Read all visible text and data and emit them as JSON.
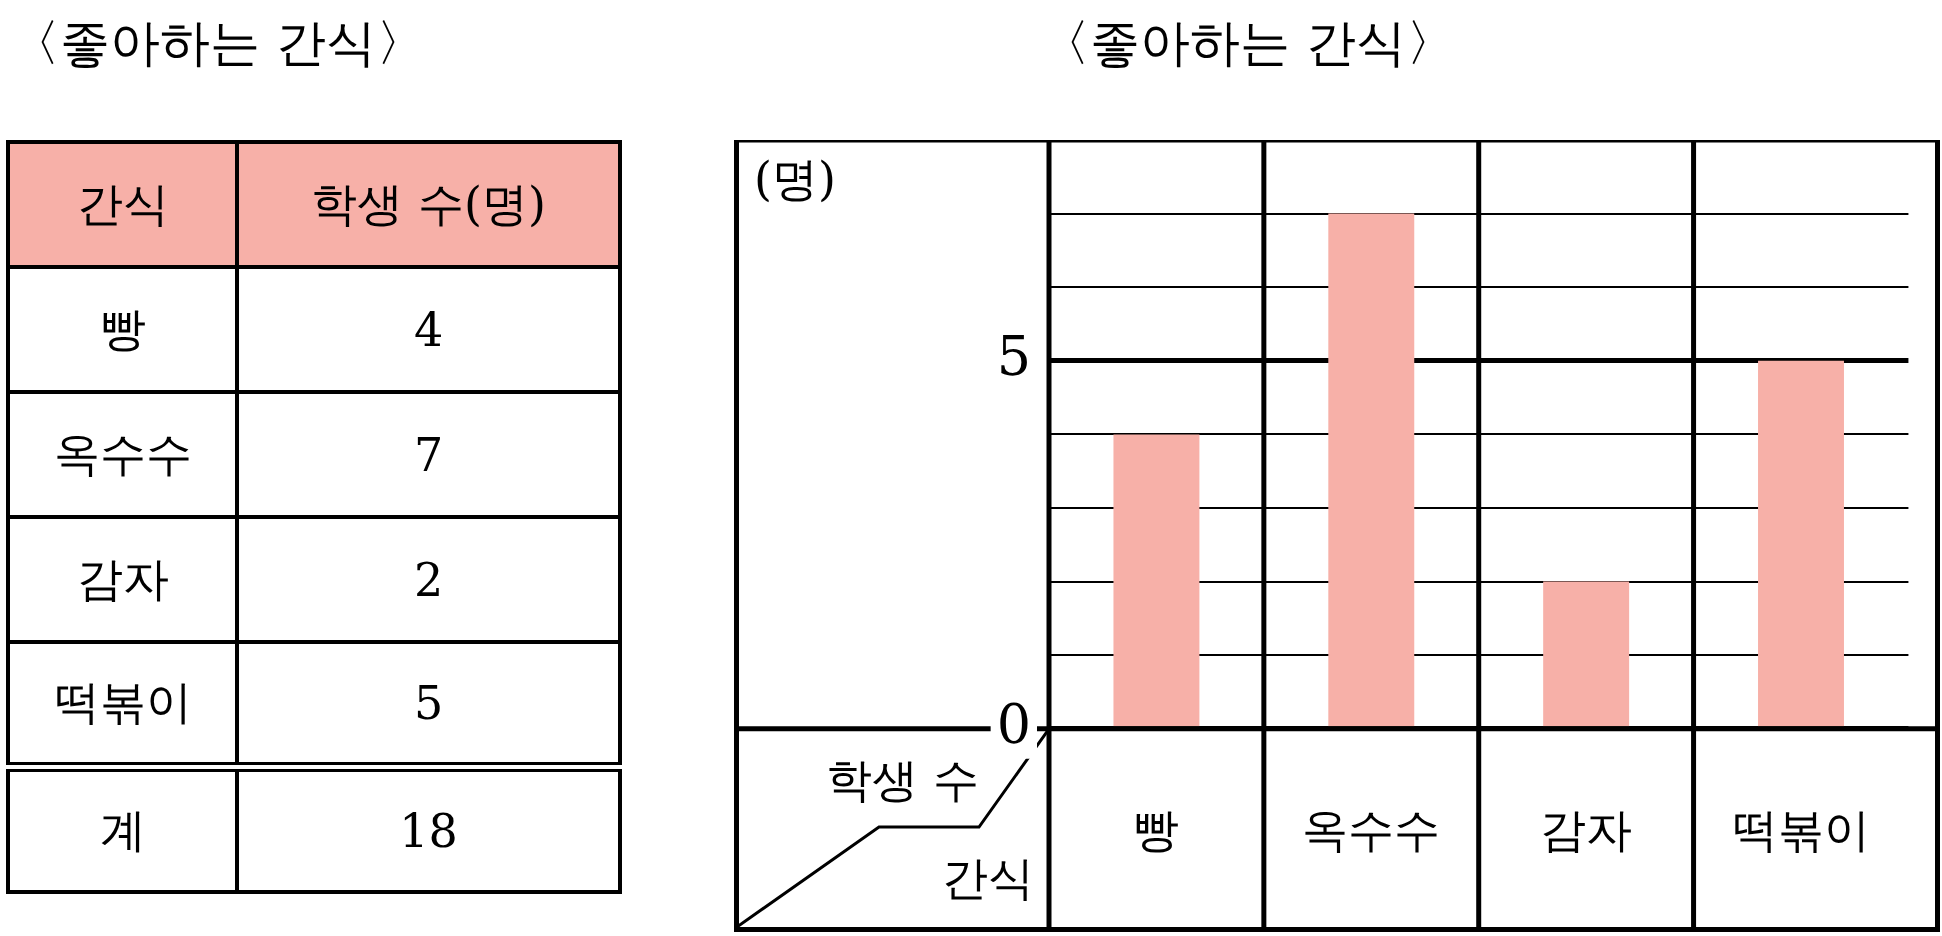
{
  "chart_data": [
    {
      "type": "other",
      "title": "〈좋아하는 간식〉",
      "color": "#f7b0a8",
      "annotations": [
        "간식",
        "학생 수(명)",
        "빵",
        "4",
        "옥수수",
        "7",
        "감자",
        "2",
        "떡볶이",
        "5",
        "계",
        "18"
      ]
    },
    {
      "type": "bar",
      "title": "〈좋아하는 간식〉",
      "xlabel": "간식",
      "ylabel": "(명)",
      "categories": [
        "빵",
        "옥수수",
        "감자",
        "떡볶이"
      ],
      "values": [
        4,
        7,
        2,
        5
      ],
      "color": "#f7b0a8",
      "ylim": [
        0,
        8
      ],
      "yticks": [
        0,
        {
          "value": 1,
          "label": null
        },
        {
          "value": 2,
          "label": null
        },
        {
          "value": 3,
          "label": null
        },
        {
          "value": 4,
          "label": null
        },
        5,
        {
          "value": 6,
          "label": null
        },
        {
          "value": 7,
          "label": null
        },
        {
          "value": 8,
          "label": null
        }
      ],
      "grid": "y",
      "annotations": [
        "학생 수"
      ]
    }
  ]
}
